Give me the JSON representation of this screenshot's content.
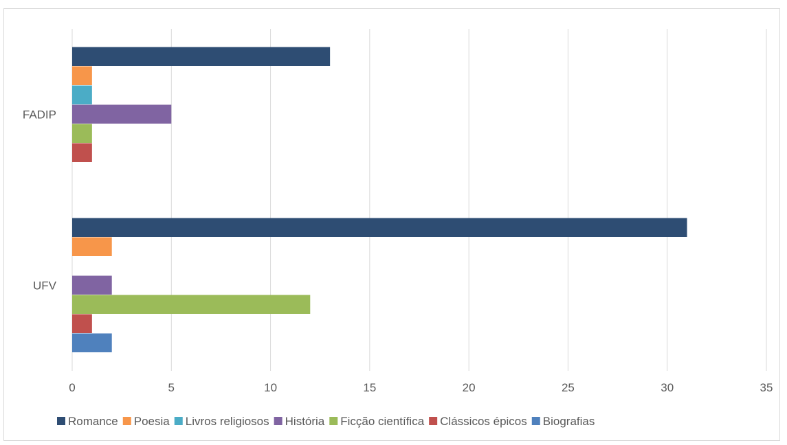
{
  "chart_data": {
    "type": "bar",
    "orientation": "horizontal",
    "title": "",
    "xlabel": "",
    "ylabel": "",
    "xlim": [
      0,
      35
    ],
    "x_ticks": [
      0,
      5,
      10,
      15,
      20,
      25,
      30,
      35
    ],
    "grid": "vertical",
    "legend_position": "bottom",
    "categories": [
      "UFV",
      "FADIP"
    ],
    "series": [
      {
        "name": "Romance",
        "color": "#2e4d73",
        "values": [
          31,
          13
        ]
      },
      {
        "name": "Poesia",
        "color": "#f7964a",
        "values": [
          2,
          1
        ]
      },
      {
        "name": "Livros religiosos",
        "color": "#4bacc6",
        "values": [
          0,
          1
        ]
      },
      {
        "name": "História",
        "color": "#8064a2",
        "values": [
          2,
          5
        ]
      },
      {
        "name": "Ficção científica",
        "color": "#9bbb59",
        "values": [
          12,
          1
        ]
      },
      {
        "name": "Clássicos épicos",
        "color": "#c0504d",
        "values": [
          1,
          1
        ]
      },
      {
        "name": "Biografias",
        "color": "#4f81bd",
        "values": [
          2,
          0
        ]
      }
    ]
  }
}
